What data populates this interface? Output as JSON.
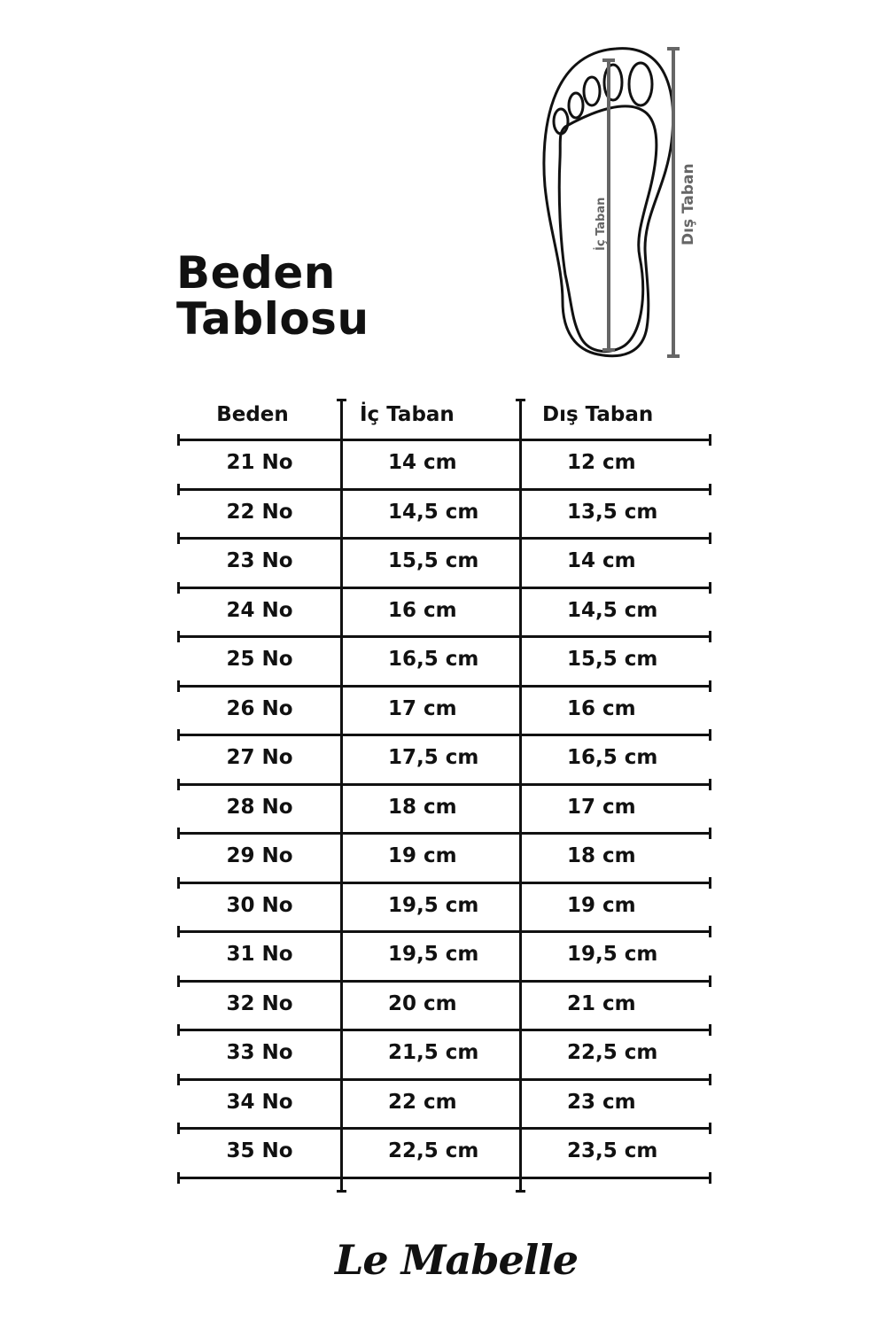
{
  "title": {
    "line1": "Beden",
    "line2": "Tablosu"
  },
  "diagram": {
    "inner_label": "İç Taban",
    "outer_label": "Dış Taban"
  },
  "table": {
    "headers": [
      "Beden",
      "İç Taban",
      "Dış Taban"
    ],
    "rows": [
      [
        "21 No",
        "14 cm",
        "12 cm"
      ],
      [
        "22 No",
        "14,5 cm",
        "13,5 cm"
      ],
      [
        "23 No",
        "15,5 cm",
        "14 cm"
      ],
      [
        "24 No",
        "16 cm",
        "14,5 cm"
      ],
      [
        "25 No",
        "16,5 cm",
        "15,5 cm"
      ],
      [
        "26 No",
        "17 cm",
        "16 cm"
      ],
      [
        "27 No",
        "17,5 cm",
        "16,5 cm"
      ],
      [
        "28 No",
        "18 cm",
        "17 cm"
      ],
      [
        "29 No",
        "19 cm",
        "18 cm"
      ],
      [
        "30 No",
        "19,5 cm",
        "19 cm"
      ],
      [
        "31 No",
        "19,5 cm",
        "19,5 cm"
      ],
      [
        "32 No",
        "20 cm",
        "21 cm"
      ],
      [
        "33 No",
        "21,5 cm",
        "22,5 cm"
      ],
      [
        "34 No",
        "22 cm",
        "23 cm"
      ],
      [
        "35 No",
        "22,5 cm",
        "23,5 cm"
      ]
    ]
  },
  "brand": {
    "logo": "Le Mabelle"
  },
  "colors": {
    "text": "#111111",
    "measure": "#666666"
  }
}
